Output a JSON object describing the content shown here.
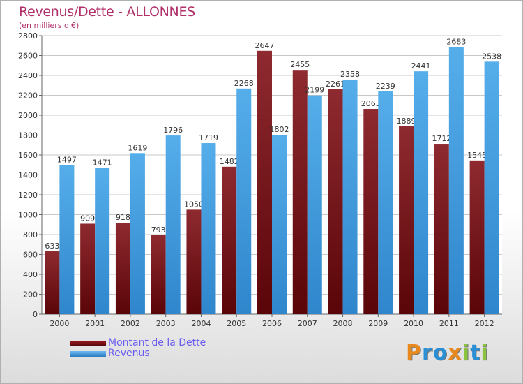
{
  "title": "Revenus/Dette - ALLONNES",
  "subtitle": "(en milliers d'€)",
  "chart_data": {
    "type": "bar",
    "categories": [
      "2000",
      "2001",
      "2002",
      "2003",
      "2004",
      "2005",
      "2006",
      "2007",
      "2008",
      "2009",
      "2010",
      "2011",
      "2012"
    ],
    "series": [
      {
        "name": "Montant de la Dette",
        "color": "#7a1218",
        "values": [
          633,
          909,
          918,
          793,
          1050,
          1482,
          2647,
          2455,
          2261,
          2063,
          1889,
          1712,
          1545
        ]
      },
      {
        "name": "Revenus",
        "color": "#3a9ae0",
        "values": [
          1497,
          1471,
          1619,
          1796,
          1719,
          2268,
          1802,
          2199,
          2358,
          2239,
          2441,
          2683,
          2538
        ]
      }
    ],
    "data_labels": [
      [
        "633",
        "909",
        "918",
        "793",
        "1050",
        "1482",
        "2647",
        "2455",
        "2261",
        "2063",
        "1889",
        "1712",
        "1545"
      ],
      [
        "1497",
        "1471",
        "1619",
        "1796",
        "1719",
        "2268",
        "1802",
        "2199",
        "2358",
        "2239",
        "2441",
        "2683",
        "2538"
      ]
    ],
    "ylim": [
      0,
      2800
    ],
    "yticks": [
      0,
      200,
      400,
      600,
      800,
      1000,
      1200,
      1400,
      1600,
      1800,
      2000,
      2200,
      2400,
      2600,
      2800
    ],
    "grid": true,
    "legend_position": "bottom-left"
  },
  "logo": {
    "letters": [
      "P",
      "r",
      "o",
      "x",
      "i",
      "t",
      "i"
    ],
    "colors": [
      "#e8891f",
      "#2b8fd6",
      "#2b8fd6",
      "#e8891f",
      "#8bc53f",
      "#2b8fd6",
      "#8bc53f"
    ]
  }
}
